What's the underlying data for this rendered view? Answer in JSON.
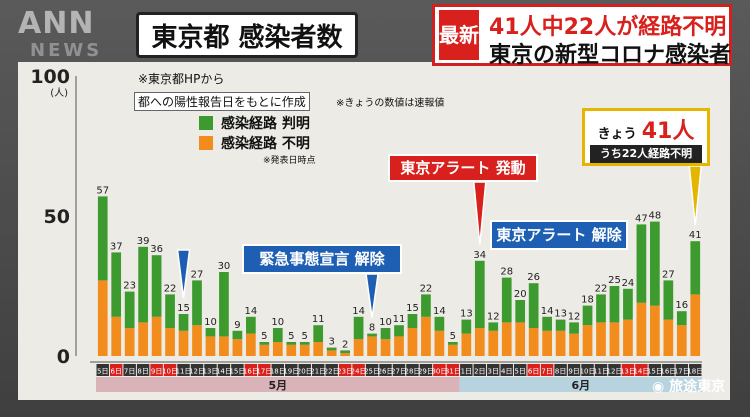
{
  "brand": {
    "logo": "ANN",
    "logo_sub": "NEWS"
  },
  "title": "東京都 感染者数",
  "headline": {
    "tag": "最新",
    "main": "41人中22人が経路不明",
    "sub": "東京の新型コロナ感染者"
  },
  "notes": {
    "source": "※東京都HPから",
    "basis": "都への陽性報告日をもとに作成",
    "today_note": "※きょうの数値は速報値"
  },
  "legend": {
    "known": "感染経路 判明",
    "unknown": "感染経路 不明",
    "note": "※発表日時点"
  },
  "today_box": {
    "label": "きょう",
    "value": "41人",
    "detail": "うち22人経路不明"
  },
  "callouts": {
    "alert_start": "東京アラート 発動",
    "alert_end": "東京アラート 解除",
    "emergency_end": "緊急事態宣言 解除"
  },
  "watermark": "旅途東京",
  "colors": {
    "known": "#3c9a2e",
    "unknown": "#f28c1c",
    "weekend": "#d8201c",
    "may_band": "#d9b3b8",
    "june_band": "#b7d3df"
  },
  "chart_data": {
    "type": "bar",
    "stacked": true,
    "yunit": "(人)",
    "ylim": [
      0,
      100
    ],
    "yticks": [
      0,
      50,
      100
    ],
    "month_labels": [
      "5月",
      "6月"
    ],
    "categories": [
      "5日",
      "6日",
      "7日",
      "8日",
      "9日",
      "10日",
      "11日",
      "12日",
      "13日",
      "14日",
      "15日",
      "16日",
      "17日",
      "18日",
      "19日",
      "20日",
      "21日",
      "22日",
      "23日",
      "24日",
      "25日",
      "26日",
      "27日",
      "28日",
      "29日",
      "30日",
      "31日",
      "1日",
      "2日",
      "3日",
      "4日",
      "5日",
      "6日",
      "7日",
      "8日",
      "9日",
      "10日",
      "11日",
      "12日",
      "13日",
      "14日",
      "15日",
      "16日",
      "17日",
      "18日"
    ],
    "weekend": [
      false,
      true,
      false,
      false,
      true,
      true,
      false,
      false,
      false,
      false,
      false,
      true,
      true,
      false,
      false,
      false,
      false,
      false,
      true,
      true,
      false,
      false,
      false,
      false,
      false,
      true,
      true,
      false,
      false,
      false,
      false,
      false,
      true,
      true,
      false,
      false,
      false,
      false,
      false,
      true,
      true,
      false,
      false,
      false,
      false
    ],
    "totals": [
      57,
      37,
      23,
      39,
      36,
      22,
      15,
      27,
      10,
      30,
      9,
      14,
      5,
      10,
      5,
      5,
      11,
      3,
      2,
      14,
      8,
      10,
      11,
      15,
      22,
      14,
      5,
      13,
      34,
      12,
      28,
      20,
      26,
      14,
      13,
      12,
      18,
      22,
      25,
      24,
      47,
      48,
      27,
      16,
      41
    ],
    "series": [
      {
        "name": "感染経路 判明",
        "values": [
          30,
          23,
          13,
          27,
          22,
          12,
          6,
          16,
          3,
          23,
          3,
          6,
          1,
          5,
          1,
          1,
          6,
          1,
          1,
          8,
          1,
          4,
          4,
          5,
          8,
          5,
          1,
          5,
          24,
          3,
          16,
          8,
          16,
          5,
          4,
          4,
          7,
          10,
          13,
          11,
          28,
          30,
          14,
          5,
          19
        ]
      },
      {
        "name": "感染経路 不明",
        "values": [
          27,
          14,
          10,
          12,
          14,
          10,
          9,
          11,
          7,
          7,
          6,
          8,
          4,
          5,
          4,
          4,
          5,
          2,
          1,
          6,
          7,
          6,
          7,
          10,
          14,
          9,
          4,
          8,
          10,
          9,
          12,
          12,
          10,
          9,
          9,
          8,
          11,
          12,
          12,
          13,
          19,
          18,
          13,
          11,
          22
        ]
      }
    ]
  }
}
